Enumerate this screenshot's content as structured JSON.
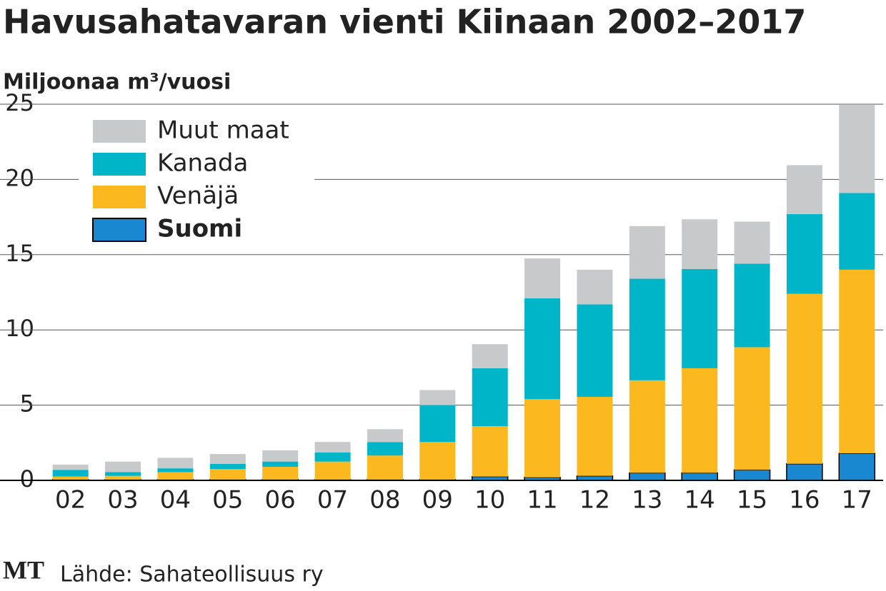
{
  "chart_data": {
    "type": "stacked-bar",
    "title": "Havusahatavaran vienti Kiinaan 2002–2017",
    "y_label": "Miljoonaa m³/vuosi",
    "categories": [
      "02",
      "03",
      "04",
      "05",
      "06",
      "07",
      "08",
      "09",
      "10",
      "11",
      "12",
      "13",
      "14",
      "15",
      "16",
      "17"
    ],
    "series": [
      {
        "name": "Suomi",
        "color": "#1a88d0",
        "values": [
          0.05,
          0.05,
          0.05,
          0.05,
          0.05,
          0.05,
          0.05,
          0.05,
          0.25,
          0.2,
          0.3,
          0.5,
          0.5,
          0.7,
          1.1,
          1.8
        ]
      },
      {
        "name": "Venäjä",
        "color": "#fbb81f",
        "values": [
          0.2,
          0.25,
          0.5,
          0.7,
          0.85,
          1.2,
          1.6,
          2.5,
          3.35,
          5.2,
          5.25,
          6.15,
          6.95,
          8.15,
          11.3,
          12.2
        ]
      },
      {
        "name": "Kanada",
        "color": "#00b5c8",
        "values": [
          0.45,
          0.25,
          0.25,
          0.35,
          0.35,
          0.6,
          0.9,
          2.45,
          3.85,
          6.7,
          6.15,
          6.75,
          6.6,
          5.55,
          5.3,
          5.1
        ]
      },
      {
        "name": "Muut maat",
        "color": "#c8c9cb",
        "values": [
          0.35,
          0.7,
          0.7,
          0.65,
          0.75,
          0.7,
          0.85,
          1.0,
          1.6,
          2.65,
          2.3,
          3.5,
          3.3,
          2.8,
          3.25,
          5.85
        ]
      }
    ],
    "ylim": [
      0,
      25
    ],
    "yticks": [
      0,
      5,
      10,
      15,
      20,
      25
    ],
    "grid": true,
    "logo": "MT",
    "source": "Lähde: Sahateollisuus ry"
  }
}
